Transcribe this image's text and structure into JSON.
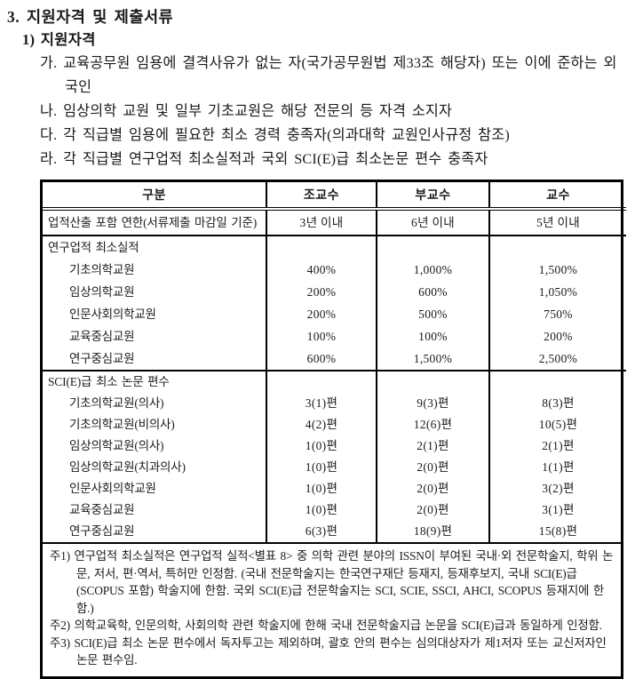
{
  "doc": {
    "title": "3. 지원자격 및 제출서류",
    "section_heading": "1) 지원자격",
    "qualifications": [
      "가. 교육공무원 임용에 결격사유가 없는 자(국가공무원법 제33조 해당자) 또는 이에 준하는 외국인",
      "나. 임상의학 교원 및 일부 기초교원은 해당 전문의 등 자격 소지자",
      "다. 각 직급별 임용에 필요한 최소 경력 충족자(의과대학 교원인사규정 참조)",
      "라. 각 직급별 연구업적 최소실적과 국외 SCI(E)급 최소논문 편수 충족자"
    ]
  },
  "table": {
    "columns": [
      "구분",
      "조교수",
      "부교수",
      "교수"
    ],
    "year_row": {
      "label": "업적산출 포함 연한(서류제출 마감일 기준)",
      "values": [
        "3년 이내",
        "6년 이내",
        "5년 이내"
      ]
    },
    "research_section": {
      "title": "연구업적 최소실적",
      "rows": [
        {
          "label": "기초의학교원",
          "values": [
            "400%",
            "1,000%",
            "1,500%"
          ]
        },
        {
          "label": "임상의학교원",
          "values": [
            "200%",
            "600%",
            "1,050%"
          ]
        },
        {
          "label": "인문사회의학교원",
          "values": [
            "200%",
            "500%",
            "750%"
          ]
        },
        {
          "label": "교육중심교원",
          "values": [
            "100%",
            "100%",
            "200%"
          ]
        },
        {
          "label": "연구중심교원",
          "values": [
            "600%",
            "1,500%",
            "2,500%"
          ]
        }
      ]
    },
    "sci_section": {
      "title": "SCI(E)급 최소 논문 편수",
      "rows": [
        {
          "label": "기초의학교원(의사)",
          "values": [
            "3(1)편",
            "9(3)편",
            "8(3)편"
          ]
        },
        {
          "label": "기초의학교원(비의사)",
          "values": [
            "4(2)편",
            "12(6)편",
            "10(5)편"
          ]
        },
        {
          "label": "임상의학교원(의사)",
          "values": [
            "1(0)편",
            "2(1)편",
            "2(1)편"
          ]
        },
        {
          "label": "임상의학교원(치과의사)",
          "values": [
            "1(0)편",
            "2(0)편",
            "1(1)편"
          ]
        },
        {
          "label": "인문사회의학교원",
          "values": [
            "1(0)편",
            "2(0)편",
            "3(2)편"
          ]
        },
        {
          "label": "교육중심교원",
          "values": [
            "1(0)편",
            "2(0)편",
            "3(1)편"
          ]
        },
        {
          "label": "연구중심교원",
          "values": [
            "6(3)편",
            "18(9)편",
            "15(8)편"
          ]
        }
      ]
    }
  },
  "footnotes": [
    "주1) 연구업적 최소실적은 연구업적 실적<별표 8> 중 의학 관련 분야의 ISSN이 부여된 국내·외 전문학술지, 학위 논문, 저서, 편·역서, 특허만 인정함. (국내 전문학술지는 한국연구재단 등재지, 등재후보지, 국내 SCI(E)급 (SCOPUS 포함) 학술지에 한함. 국외 SCI(E)급 전문학술지는 SCI, SCIE, SSCI, AHCI, SCOPUS 등재지에 한함.)",
    "주2) 의학교육학, 인문의학, 사회의학 관련 학술지에 한해 국내 전문학술지급 논문을 SCI(E)급과 동일하게 인정함.",
    "주3) SCI(E)급 최소 논문 편수에서 독자투고는 제외하며, 괄호 안의 편수는 심의대상자가 제1저자 또는 교신저자인 논문 편수임."
  ]
}
